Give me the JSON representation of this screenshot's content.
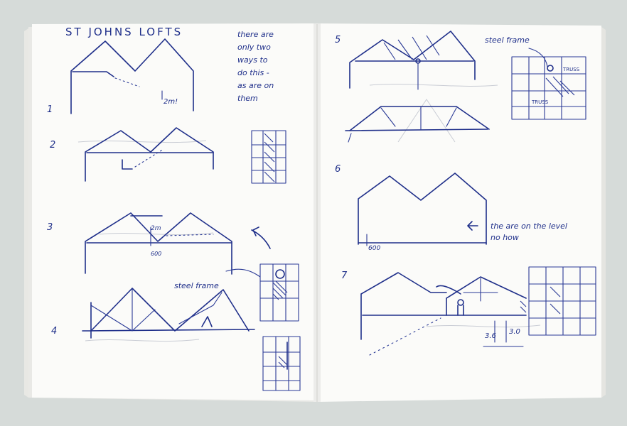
{
  "left_page": {
    "title": "ST JOHNS LOFTS",
    "note_lines": [
      "there are",
      "only two",
      "ways to",
      "do this -",
      "as are on",
      "them"
    ],
    "step_labels": [
      "1",
      "2",
      "3",
      "4"
    ],
    "dimension_labels": [
      "2m!",
      "2m",
      "600"
    ],
    "steel_frame_label": "steel frame"
  },
  "right_page": {
    "step_labels": [
      "5",
      "6",
      "7"
    ],
    "steel_frame_label": "steel frame",
    "truss_labels": [
      "TRUSS",
      "TRUSS"
    ],
    "note_lines": [
      "the are on the level",
      "no how"
    ],
    "dimension_labels": [
      "600",
      "3.6",
      "3.0"
    ]
  },
  "colors": {
    "ink": "#1f2f8a",
    "paper": "#fbfbf9",
    "background": "#d6dbd9"
  }
}
